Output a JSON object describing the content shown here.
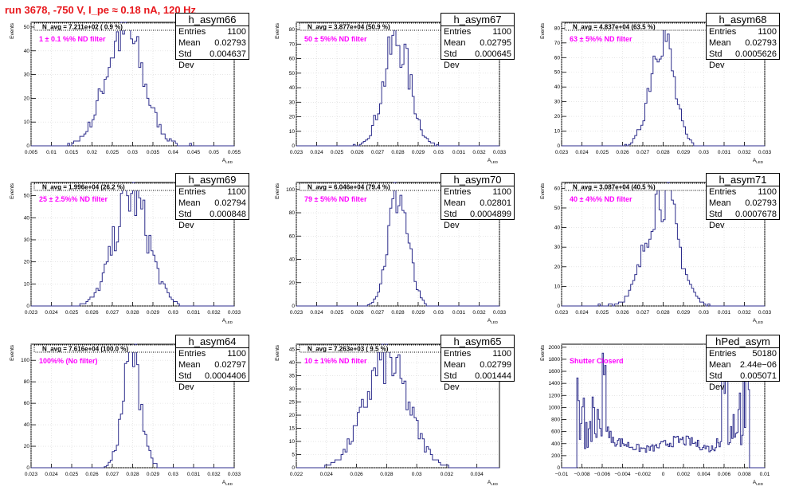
{
  "title": "run 3678,  -750 V, I_pe ≈ 0.18 nA, 120 Hz",
  "ylabel": "Events",
  "xlabel": "A",
  "xlabel_sub": "LED",
  "stat_labels": {
    "entries": "Entries",
    "mean": "Mean",
    "std": "Std Dev"
  },
  "colors": {
    "line": "#2e2e8c",
    "navg": "#000000",
    "filter": "#ff00ff",
    "title": "#e8191e"
  },
  "chart_data": [
    {
      "type": "histogram",
      "name": "h_asym66",
      "navg": "N_avg = 7.211e+02 ( 0.9 %)",
      "filter": "1 ± 0.1 %% ND filter",
      "entries": "1100",
      "mean": "0.02793",
      "std": "0.004637",
      "xlim": [
        0.005,
        0.055
      ],
      "ylim": [
        0,
        52
      ],
      "xticks": [
        0.005,
        0.01,
        0.015,
        0.02,
        0.025,
        0.03,
        0.035,
        0.04,
        0.045,
        0.05,
        0.055
      ],
      "xtick_labels": [
        "0.005",
        "0.01",
        "0.015",
        "0.02",
        "0.025",
        "0.03",
        "0.035",
        "0.04",
        "0.045",
        "0.05",
        "0.055"
      ],
      "yticks": [
        0,
        10,
        20,
        30,
        40,
        50
      ],
      "ytick_labels": [
        "0",
        "10",
        "20",
        "30",
        "40",
        "50"
      ],
      "mu": 0.02793,
      "sigma": 0.004637,
      "peak": 50
    },
    {
      "type": "histogram",
      "name": "h_asym67",
      "navg": "N_avg = 3.877e+04 (50.9 %)",
      "filter": "50 ± 5%% ND filter",
      "entries": "1100",
      "mean": "0.02795",
      "std": "0.000645",
      "xlim": [
        0.023,
        0.033
      ],
      "ylim": [
        0,
        85
      ],
      "xticks": [
        0.023,
        0.024,
        0.025,
        0.026,
        0.027,
        0.028,
        0.029,
        0.03,
        0.031,
        0.032,
        0.033
      ],
      "xtick_labels": [
        "0.023",
        "0.024",
        "0.025",
        "0.026",
        "0.027",
        "0.028",
        "0.029",
        "0.03",
        "0.031",
        "0.032",
        "0.033"
      ],
      "yticks": [
        0,
        10,
        20,
        30,
        40,
        50,
        60,
        70,
        80
      ],
      "ytick_labels": [
        "0",
        "10",
        "20",
        "30",
        "40",
        "50",
        "60",
        "70",
        "80"
      ],
      "mu": 0.02795,
      "sigma": 0.000645,
      "peak": 75
    },
    {
      "type": "histogram",
      "name": "h_asym68",
      "navg": "N_avg = 4.837e+04 (63.5 %)",
      "filter": "63 ± 5%% ND filter",
      "entries": "1100",
      "mean": "0.02793",
      "std": "0.0005626",
      "xlim": [
        0.023,
        0.033
      ],
      "ylim": [
        0,
        84
      ],
      "xticks": [
        0.023,
        0.024,
        0.025,
        0.026,
        0.027,
        0.028,
        0.029,
        0.03,
        0.031,
        0.032,
        0.033
      ],
      "xtick_labels": [
        "0.023",
        "0.024",
        "0.025",
        "0.026",
        "0.027",
        "0.028",
        "0.029",
        "0.03",
        "0.031",
        "0.032",
        "0.033"
      ],
      "yticks": [
        0,
        10,
        20,
        30,
        40,
        50,
        60,
        70,
        80
      ],
      "ytick_labels": [
        "0",
        "10",
        "20",
        "30",
        "40",
        "50",
        "60",
        "70",
        "80"
      ],
      "mu": 0.02793,
      "sigma": 0.0005626,
      "peak": 80
    },
    {
      "type": "histogram",
      "name": "h_asym69",
      "navg": "N_avg = 1.996e+04 (26.2 %)",
      "filter": "25 ± 2.5%% ND filter",
      "entries": "1100",
      "mean": "0.02794",
      "std": "0.000848",
      "xlim": [
        0.023,
        0.033
      ],
      "ylim": [
        0,
        56
      ],
      "xticks": [
        0.023,
        0.024,
        0.025,
        0.026,
        0.027,
        0.028,
        0.029,
        0.03,
        0.031,
        0.032,
        0.033
      ],
      "xtick_labels": [
        "0.023",
        "0.024",
        "0.025",
        "0.026",
        "0.027",
        "0.028",
        "0.029",
        "0.03",
        "0.031",
        "0.032",
        "0.033"
      ],
      "yticks": [
        0,
        10,
        20,
        30,
        40,
        50
      ],
      "ytick_labels": [
        "0",
        "10",
        "20",
        "30",
        "40",
        "50"
      ],
      "mu": 0.02794,
      "sigma": 0.000848,
      "peak": 52
    },
    {
      "type": "histogram",
      "name": "h_asym70",
      "navg": "N_avg = 6.046e+04 (79.4 %)",
      "filter": "79 ± 5%% ND filter",
      "entries": "1100",
      "mean": "0.02801",
      "std": "0.0004899",
      "xlim": [
        0.023,
        0.033
      ],
      "ylim": [
        0,
        106
      ],
      "xticks": [
        0.023,
        0.024,
        0.025,
        0.026,
        0.027,
        0.028,
        0.029,
        0.03,
        0.031,
        0.032,
        0.033
      ],
      "xtick_labels": [
        "0.023",
        "0.024",
        "0.025",
        "0.026",
        "0.027",
        "0.028",
        "0.029",
        "0.03",
        "0.031",
        "0.032",
        "0.033"
      ],
      "yticks": [
        0,
        20,
        40,
        60,
        80,
        100
      ],
      "ytick_labels": [
        "0",
        "20",
        "40",
        "60",
        "80",
        "100"
      ],
      "mu": 0.02801,
      "sigma": 0.0004899,
      "peak": 100
    },
    {
      "type": "histogram",
      "name": "h_asym71",
      "navg": "N_avg = 3.087e+04 (40.5 %)",
      "filter": "40 ± 4%% ND filter",
      "entries": "1100",
      "mean": "0.02793",
      "std": "0.0007678",
      "xlim": [
        0.023,
        0.033
      ],
      "ylim": [
        0,
        63
      ],
      "xticks": [
        0.023,
        0.024,
        0.025,
        0.026,
        0.027,
        0.028,
        0.029,
        0.03,
        0.031,
        0.032,
        0.033
      ],
      "xtick_labels": [
        "0.023",
        "0.024",
        "0.025",
        "0.026",
        "0.027",
        "0.028",
        "0.029",
        "0.03",
        "0.031",
        "0.032",
        "0.033"
      ],
      "yticks": [
        0,
        10,
        20,
        30,
        40,
        50,
        60
      ],
      "ytick_labels": [
        "0",
        "10",
        "20",
        "30",
        "40",
        "50",
        "60"
      ],
      "mu": 0.02793,
      "sigma": 0.0007678,
      "peak": 60
    },
    {
      "type": "histogram",
      "name": "h_asym64",
      "navg": "N_avg = 7.616e+04 (100.0 %)",
      "filter": "100%% (No filter)",
      "entries": "1100",
      "mean": "0.02797",
      "std": "0.0004406",
      "xlim": [
        0.023,
        0.033
      ],
      "ylim": [
        0,
        115
      ],
      "xticks": [
        0.023,
        0.024,
        0.025,
        0.026,
        0.027,
        0.028,
        0.029,
        0.03,
        0.031,
        0.032,
        0.033
      ],
      "xtick_labels": [
        "0.023",
        "0.024",
        "0.025",
        "0.026",
        "0.027",
        "0.028",
        "0.029",
        "0.03",
        "0.031",
        "0.032",
        "0.033"
      ],
      "yticks": [
        0,
        20,
        40,
        60,
        80,
        100
      ],
      "ytick_labels": [
        "0",
        "20",
        "40",
        "60",
        "80",
        "100"
      ],
      "mu": 0.02797,
      "sigma": 0.0004406,
      "peak": 108
    },
    {
      "type": "histogram",
      "name": "h_asym65",
      "navg": "N_avg = 7.263e+03 ( 9.5 %)",
      "filter": "10 ± 1%% ND filter",
      "entries": "1100",
      "mean": "0.02799",
      "std": "0.001444",
      "xlim": [
        0.022,
        0.0355
      ],
      "ylim": [
        0,
        47
      ],
      "xticks": [
        0.022,
        0.024,
        0.026,
        0.028,
        0.03,
        0.032,
        0.034
      ],
      "xtick_labels": [
        "0.022",
        "0.024",
        "0.026",
        "0.028",
        "0.03",
        "0.032",
        "0.034"
      ],
      "yticks": [
        0,
        5,
        10,
        15,
        20,
        25,
        30,
        35,
        40,
        45
      ],
      "ytick_labels": [
        "0",
        "5",
        "10",
        "15",
        "20",
        "25",
        "30",
        "35",
        "40",
        "45"
      ],
      "mu": 0.02799,
      "sigma": 0.001444,
      "peak": 42
    },
    {
      "type": "histogram",
      "name": "hPed_asym",
      "navg": "",
      "filter": "Shutter Closerd",
      "entries": "50180",
      "mean": "2.44e−06",
      "std": "0.005071",
      "xlim": [
        -0.01,
        0.01
      ],
      "ylim": [
        0,
        2050
      ],
      "xticks": [
        -0.01,
        -0.008,
        -0.006,
        -0.004,
        -0.002,
        0,
        0.002,
        0.004,
        0.006,
        0.008,
        0.01
      ],
      "xtick_labels": [
        "−0.01",
        "−0.008",
        "−0.006",
        "−0.004",
        "−0.002",
        "0",
        "0.002",
        "0.004",
        "0.006",
        "0.008",
        "0.01"
      ],
      "yticks": [
        0,
        200,
        400,
        600,
        800,
        1000,
        1200,
        1400,
        1600,
        1800,
        2000
      ],
      "ytick_labels": [
        "0",
        "200",
        "400",
        "600",
        "800",
        "1000",
        "1200",
        "1400",
        "1600",
        "1800",
        "2000"
      ],
      "pedestal": true,
      "peak": 1900
    }
  ]
}
